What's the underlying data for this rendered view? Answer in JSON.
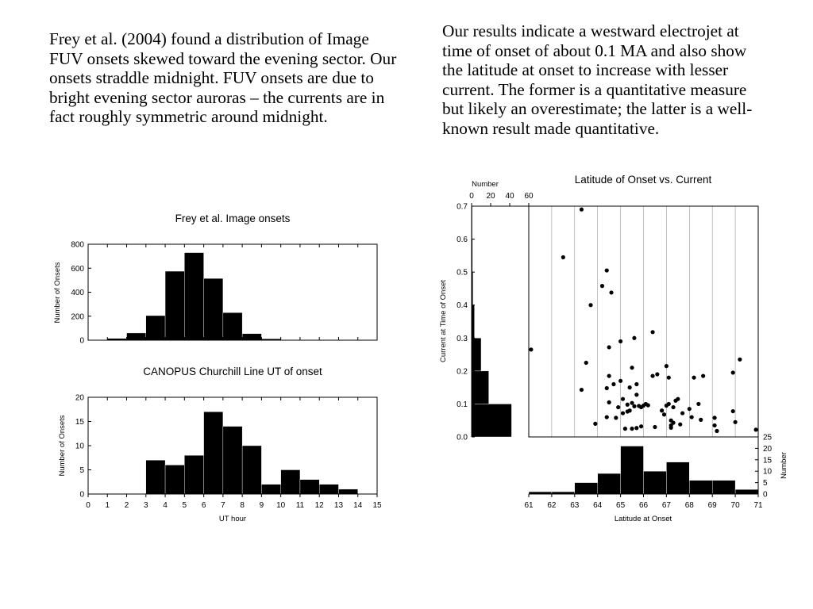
{
  "paragraphs": {
    "left": "Frey et al. (2004) found a distribution of Image FUV onsets skewed toward the evening sector. Our onsets straddle midnight. FUV onsets are due to bright evening sector auroras – the currents are in fact roughly symmetric around midnight.",
    "right": "Our results indicate a westward electrojet at time of onset of about 0.1 MA and also show the latitude at onset to increase with lesser current. The former is a quantitative measure but likely an overestimate; the latter is a well-known result made quantitative."
  },
  "chart_data": [
    {
      "type": "bar",
      "title": "Frey et al. Image onsets",
      "xlabel": "",
      "ylabel": "Number of Onsets",
      "xlim": [
        0,
        15
      ],
      "ylim": [
        0,
        800
      ],
      "yticks": [
        0,
        200,
        400,
        600,
        800
      ],
      "bins": [
        [
          1,
          2,
          15
        ],
        [
          2,
          3,
          60
        ],
        [
          3,
          4,
          205
        ],
        [
          4,
          5,
          575
        ],
        [
          5,
          6,
          730
        ],
        [
          6,
          7,
          515
        ],
        [
          7,
          8,
          230
        ],
        [
          8,
          9,
          55
        ],
        [
          9,
          10,
          12
        ]
      ]
    },
    {
      "type": "bar",
      "title": "CANOPUS Churchill Line UT of onset",
      "xlabel": "UT hour",
      "ylabel": "Number of Onsets",
      "xlim": [
        0,
        15
      ],
      "ylim": [
        0,
        20
      ],
      "xticks": [
        0,
        1,
        2,
        3,
        4,
        5,
        6,
        7,
        8,
        9,
        10,
        11,
        12,
        13,
        14,
        15
      ],
      "yticks": [
        0,
        5,
        10,
        15,
        20
      ],
      "bins": [
        [
          3,
          4,
          7
        ],
        [
          4,
          5,
          6
        ],
        [
          5,
          6,
          8
        ],
        [
          6,
          7,
          17
        ],
        [
          7,
          8,
          14
        ],
        [
          8,
          9,
          10
        ],
        [
          9,
          10,
          2
        ],
        [
          10,
          11,
          5
        ],
        [
          11,
          12,
          3
        ],
        [
          12,
          13,
          2
        ],
        [
          13,
          14,
          1
        ]
      ]
    },
    {
      "type": "scatter",
      "title": "Latitude of Onset vs. Current",
      "xlabel": "Latitude at Onset",
      "ylabel": "Current at Time of Onset",
      "xlim": [
        61,
        71
      ],
      "ylim": [
        0,
        0.7
      ],
      "xticks": [
        61,
        62,
        63,
        64,
        65,
        66,
        67,
        68,
        69,
        70,
        71
      ],
      "yticks": [
        0.0,
        0.1,
        0.2,
        0.3,
        0.4,
        0.5,
        0.6,
        0.7
      ],
      "ytick_labels": [
        "0.0",
        "0.1",
        "0.2",
        "0.3",
        "0.4",
        "0.5",
        "0.6",
        "0.7"
      ],
      "points": [
        [
          61.1,
          0.265
        ],
        [
          62.5,
          0.545
        ],
        [
          63.3,
          0.69
        ],
        [
          63.3,
          0.143
        ],
        [
          63.5,
          0.225
        ],
        [
          63.7,
          0.4
        ],
        [
          63.9,
          0.04
        ],
        [
          64.2,
          0.458
        ],
        [
          64.4,
          0.505
        ],
        [
          64.4,
          0.06
        ],
        [
          64.4,
          0.148
        ],
        [
          64.5,
          0.185
        ],
        [
          64.5,
          0.272
        ],
        [
          64.6,
          0.438
        ],
        [
          64.5,
          0.105
        ],
        [
          64.7,
          0.16
        ],
        [
          64.8,
          0.058
        ],
        [
          64.9,
          0.09
        ],
        [
          65.0,
          0.29
        ],
        [
          65.0,
          0.17
        ],
        [
          65.1,
          0.115
        ],
        [
          65.1,
          0.072
        ],
        [
          65.2,
          0.025
        ],
        [
          65.3,
          0.098
        ],
        [
          65.3,
          0.077
        ],
        [
          65.4,
          0.15
        ],
        [
          65.4,
          0.08
        ],
        [
          65.5,
          0.21
        ],
        [
          65.5,
          0.025
        ],
        [
          65.5,
          0.103
        ],
        [
          65.6,
          0.3
        ],
        [
          65.6,
          0.093
        ],
        [
          65.7,
          0.16
        ],
        [
          65.7,
          0.128
        ],
        [
          65.7,
          0.027
        ],
        [
          65.8,
          0.094
        ],
        [
          65.9,
          0.032
        ],
        [
          65.9,
          0.09
        ],
        [
          66.0,
          0.095
        ],
        [
          66.1,
          0.1
        ],
        [
          66.2,
          0.096
        ],
        [
          66.4,
          0.318
        ],
        [
          66.4,
          0.185
        ],
        [
          66.5,
          0.03
        ],
        [
          66.6,
          0.19
        ],
        [
          66.8,
          0.08
        ],
        [
          66.9,
          0.068
        ],
        [
          67.0,
          0.215
        ],
        [
          67.0,
          0.095
        ],
        [
          67.1,
          0.1
        ],
        [
          67.1,
          0.18
        ],
        [
          67.2,
          0.05
        ],
        [
          67.2,
          0.035
        ],
        [
          67.2,
          0.028
        ],
        [
          67.3,
          0.043
        ],
        [
          67.3,
          0.09
        ],
        [
          67.4,
          0.11
        ],
        [
          67.5,
          0.115
        ],
        [
          67.6,
          0.038
        ],
        [
          67.7,
          0.072
        ],
        [
          68.0,
          0.085
        ],
        [
          68.1,
          0.06
        ],
        [
          68.2,
          0.18
        ],
        [
          68.4,
          0.1
        ],
        [
          68.5,
          0.052
        ],
        [
          68.6,
          0.185
        ],
        [
          69.1,
          0.058
        ],
        [
          69.1,
          0.035
        ],
        [
          69.2,
          0.018
        ],
        [
          69.9,
          0.195
        ],
        [
          69.9,
          0.078
        ],
        [
          70.0,
          0.045
        ],
        [
          70.2,
          0.235
        ],
        [
          70.9,
          0.022
        ]
      ]
    },
    {
      "type": "bar",
      "title": "",
      "xlabel": "Number",
      "ylabel": "",
      "orientation": "horizontal",
      "xlim": [
        0,
        60
      ],
      "xticks": [
        0,
        20,
        40,
        60
      ],
      "ylim": [
        0,
        0.7
      ],
      "bins": [
        [
          0.0,
          0.1,
          42
        ],
        [
          0.1,
          0.2,
          18
        ],
        [
          0.2,
          0.3,
          10
        ],
        [
          0.3,
          0.4,
          3
        ],
        [
          0.4,
          0.5,
          1.5
        ],
        [
          0.5,
          0.6,
          1
        ],
        [
          0.6,
          0.7,
          0.8
        ]
      ]
    },
    {
      "type": "bar",
      "title": "",
      "xlabel": "",
      "ylabel": "Number",
      "xlim": [
        61,
        71
      ],
      "ylim": [
        0,
        25
      ],
      "yticks": [
        0,
        5,
        10,
        15,
        20,
        25
      ],
      "bins": [
        [
          61,
          62,
          1
        ],
        [
          62,
          63,
          1
        ],
        [
          63,
          64,
          5
        ],
        [
          64,
          65,
          9
        ],
        [
          65,
          66,
          21
        ],
        [
          66,
          67,
          10
        ],
        [
          67,
          68,
          14
        ],
        [
          68,
          69,
          6
        ],
        [
          69,
          70,
          6
        ],
        [
          70,
          71,
          2
        ]
      ]
    }
  ]
}
